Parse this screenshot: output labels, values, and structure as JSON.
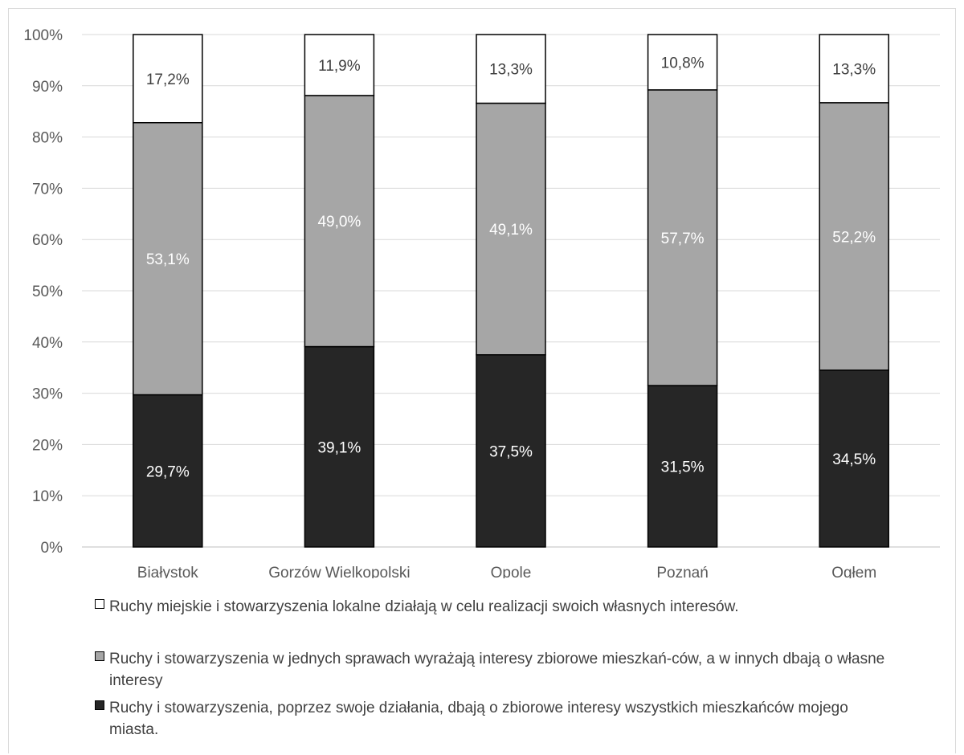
{
  "chart_data": {
    "type": "bar",
    "stacked": true,
    "categories": [
      "Białystok",
      "Gorzów Wielkopolski",
      "Opole",
      "Poznań",
      "Ogłem"
    ],
    "series": [
      {
        "name": "Ruchy  i stowarzyszenia, poprzez swoje działania, dbają o zbiorowe interesy wszystkich mieszkańców mojego miasta.",
        "color": "#262626",
        "label_color": "#ffffff",
        "values": [
          29.7,
          39.1,
          37.5,
          31.5,
          34.5
        ],
        "labels": [
          "29,7%",
          "39,1%",
          "37,5%",
          "31,5%",
          "34,5%"
        ]
      },
      {
        "name": "Ruchy  i stowarzyszenia w jednych sprawach wyrażają interesy zbiorowe mieszkań-ców, a w innych dbają o własne interesy",
        "color": "#a6a6a6",
        "label_color": "#ffffff",
        "values": [
          53.1,
          49.0,
          49.1,
          57.7,
          52.2
        ],
        "labels": [
          "53,1%",
          "49,0%",
          "49,1%",
          "57,7%",
          "52,2%"
        ]
      },
      {
        "name": "Ruchy miejskie i stowarzyszenia lokalne działają w celu realizacji swoich własnych interesów.",
        "color": "#ffffff",
        "label_color": "#404040",
        "values": [
          17.2,
          11.9,
          13.3,
          10.8,
          13.3
        ],
        "labels": [
          "17,2%",
          "11,9%",
          "13,3%",
          "10,8%",
          "13,3%"
        ]
      }
    ],
    "yticks": [
      "0%",
      "10%",
      "20%",
      "30%",
      "40%",
      "50%",
      "60%",
      "70%",
      "80%",
      "90%",
      "100%"
    ],
    "ylim": [
      0,
      100
    ],
    "grid": true,
    "legend_position": "bottom"
  },
  "legend": {
    "items": [
      {
        "label": "Ruchy miejskie i stowarzyszenia lokalne działają w celu realizacji swoich własnych interesów.",
        "color": "#ffffff"
      },
      {
        "label": "Ruchy  i stowarzyszenia w jednych sprawach wyrażają interesy zbiorowe mieszkań-ców, a w innych dbają o własne interesy",
        "color": "#a6a6a6"
      },
      {
        "label": "Ruchy  i stowarzyszenia, poprzez swoje działania, dbają o zbiorowe interesy wszystkich mieszkańców mojego miasta.",
        "color": "#262626"
      }
    ]
  }
}
